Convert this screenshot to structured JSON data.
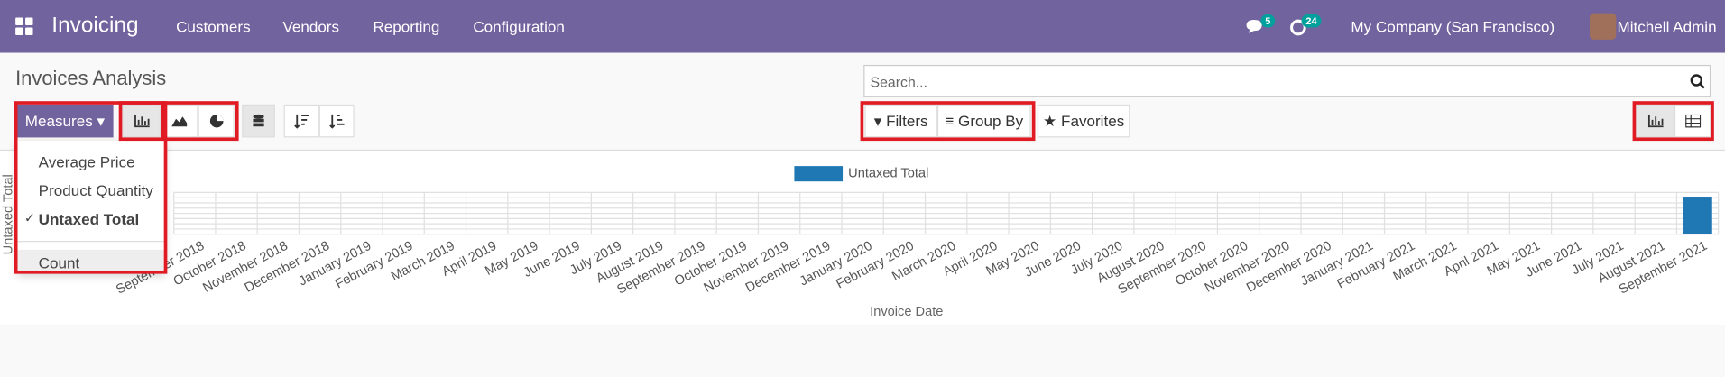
{
  "navbar": {
    "app": "Invoicing",
    "menu": [
      "Customers",
      "Vendors",
      "Reporting",
      "Configuration"
    ],
    "messages_badge": 5,
    "activities_badge": 24,
    "company": "My Company (San Francisco)",
    "user": "Mitchell Admin"
  },
  "control_panel": {
    "title": "Invoices Analysis",
    "search_placeholder": "Search...",
    "measures_button": "Measures",
    "measures_menu": [
      {
        "label": "Average Price",
        "checked": false
      },
      {
        "label": "Product Quantity",
        "checked": false
      },
      {
        "label": "Untaxed Total",
        "checked": true
      },
      {
        "label": "Count",
        "checked": false
      }
    ],
    "filters": "Filters",
    "group_by": "Group By",
    "favorites": "Favorites"
  },
  "chart_data": {
    "type": "bar",
    "x_label": "Invoice Date",
    "y_label": "Untaxed Total",
    "categories": [
      "September 2018",
      "October 2018",
      "November 2018",
      "December 2018",
      "January 2019",
      "February 2019",
      "March 2019",
      "April 2019",
      "May 2019",
      "June 2019",
      "July 2019",
      "August 2019",
      "September 2019",
      "October 2019",
      "November 2019",
      "December 2019",
      "January 2020",
      "February 2020",
      "March 2020",
      "April 2020",
      "May 2020",
      "June 2020",
      "July 2020",
      "August 2020",
      "September 2020",
      "October 2020",
      "November 2020",
      "December 2020",
      "January 2021",
      "February 2021",
      "March 2021",
      "April 2021",
      "May 2021",
      "June 2021",
      "July 2021",
      "August 2021",
      "September 2021"
    ],
    "series": [
      {
        "name": "Untaxed Total",
        "color": "#1f77b4",
        "values": [
          0,
          0,
          0,
          0,
          0,
          0,
          0,
          0,
          0,
          0,
          0,
          0,
          0,
          0,
          0,
          0,
          0,
          0,
          0,
          0,
          0,
          0,
          0,
          0,
          0,
          0,
          0,
          0,
          0,
          0,
          0,
          0,
          0,
          0,
          0,
          0,
          90
        ]
      }
    ],
    "ylim": [
      0,
      100
    ]
  }
}
